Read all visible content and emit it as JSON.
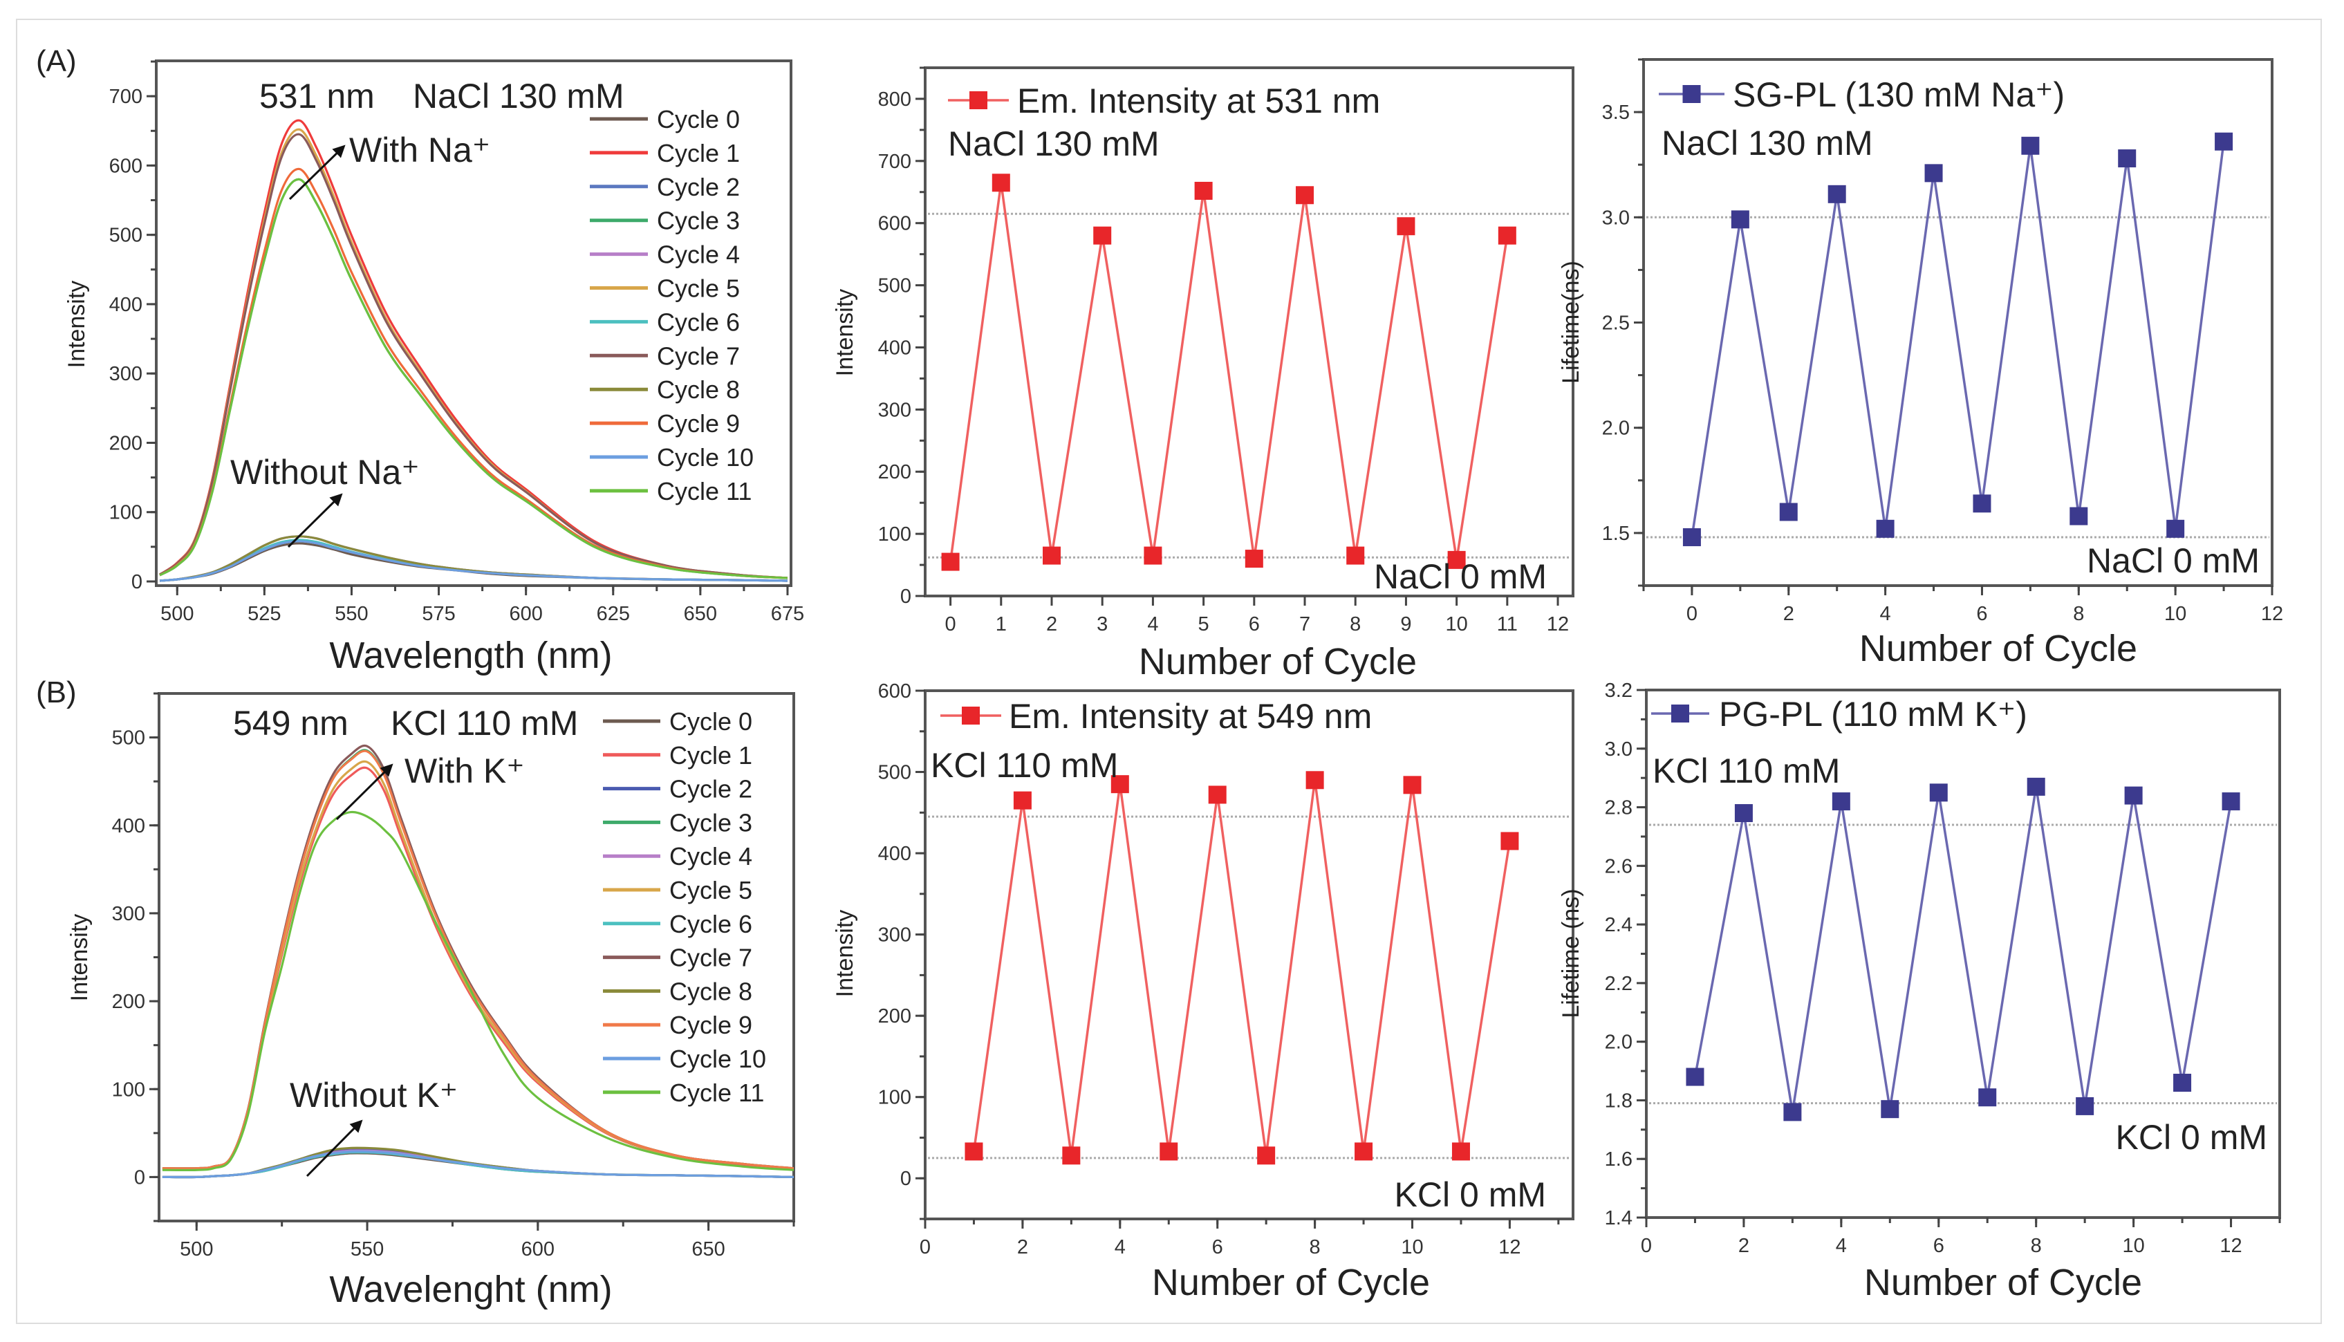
{
  "panel_labels": [
    "(A)",
    "(B)"
  ],
  "chart_data": [
    {
      "type": "line",
      "panel": "A",
      "xlabel": "Wavelength (nm)",
      "ylabel": "Intensity",
      "xlim": [
        494,
        676
      ],
      "ylim": [
        -6,
        751
      ],
      "xticks": [
        500,
        525,
        550,
        575,
        600,
        625,
        650,
        675
      ],
      "yticks": [
        0,
        100,
        200,
        300,
        400,
        500,
        600,
        700
      ],
      "grid": false,
      "legend_position": "right",
      "annotations": {
        "peak": "531 nm",
        "condition": "NaCl 130 mM",
        "with": "With Na⁺",
        "without": "Without Na⁺"
      },
      "x": [
        495,
        500,
        505,
        510,
        515,
        520,
        525,
        530,
        535,
        540,
        545,
        550,
        560,
        570,
        580,
        590,
        600,
        620,
        640,
        660,
        675
      ],
      "series": [
        {
          "name": "Cycle 0",
          "color": "#6d5a50",
          "values": [
            1,
            3,
            6,
            11,
            20,
            32,
            44,
            52,
            55,
            52,
            46,
            39,
            29,
            21,
            16,
            11,
            8,
            5,
            3,
            2,
            1
          ]
        },
        {
          "name": "Cycle 1",
          "color": "#ef3b3b",
          "values": [
            10,
            27,
            60,
            146,
            279,
            412,
            532,
            632,
            665,
            625,
            565,
            499,
            386,
            306,
            233,
            173,
            133,
            57,
            23,
            10,
            5
          ]
        },
        {
          "name": "Cycle 2",
          "color": "#5b78c0",
          "values": [
            1,
            3,
            7,
            13,
            24,
            38,
            52,
            62,
            65,
            62,
            54,
            47,
            35,
            25,
            18,
            13,
            10,
            5,
            3,
            2,
            1
          ]
        },
        {
          "name": "Cycle 3",
          "color": "#3daa6a",
          "values": [
            9,
            23,
            52,
            128,
            244,
            360,
            464,
            551,
            580,
            545,
            493,
            435,
            336,
            267,
            203,
            151,
            116,
            49,
            20,
            9,
            5
          ]
        },
        {
          "name": "Cycle 4",
          "color": "#b77fc8",
          "values": [
            1,
            3,
            7,
            13,
            24,
            38,
            52,
            62,
            65,
            62,
            54,
            47,
            35,
            25,
            18,
            13,
            10,
            5,
            3,
            2,
            1
          ]
        },
        {
          "name": "Cycle 5",
          "color": "#d8a64a",
          "values": [
            10,
            26,
            59,
            143,
            274,
            404,
            522,
            619,
            652,
            613,
            554,
            489,
            378,
            300,
            228,
            170,
            130,
            55,
            23,
            10,
            5
          ]
        },
        {
          "name": "Cycle 6",
          "color": "#4cc0c0",
          "values": [
            1,
            3,
            6,
            12,
            22,
            35,
            48,
            57,
            60,
            57,
            50,
            43,
            32,
            23,
            17,
            12,
            9,
            5,
            3,
            2,
            1
          ]
        },
        {
          "name": "Cycle 7",
          "color": "#8a5a5a",
          "values": [
            10,
            26,
            58,
            142,
            271,
            400,
            516,
            613,
            645,
            606,
            548,
            484,
            374,
            297,
            226,
            168,
            129,
            55,
            23,
            10,
            5
          ]
        },
        {
          "name": "Cycle 8",
          "color": "#8a8a3a",
          "values": [
            1,
            3,
            7,
            13,
            24,
            38,
            52,
            62,
            65,
            62,
            54,
            47,
            35,
            25,
            18,
            13,
            10,
            5,
            3,
            2,
            1
          ]
        },
        {
          "name": "Cycle 9",
          "color": "#ef6a3a",
          "values": [
            9,
            24,
            54,
            131,
            250,
            369,
            476,
            565,
            595,
            559,
            506,
            446,
            345,
            274,
            208,
            155,
            119,
            51,
            21,
            9,
            5
          ]
        },
        {
          "name": "Cycle 10",
          "color": "#6c9ee0",
          "values": [
            1,
            3,
            6,
            12,
            21,
            34,
            46,
            55,
            58,
            55,
            48,
            42,
            31,
            22,
            16,
            12,
            9,
            5,
            3,
            2,
            1
          ]
        },
        {
          "name": "Cycle 11",
          "color": "#6cc040",
          "values": [
            9,
            23,
            52,
            128,
            244,
            360,
            464,
            551,
            580,
            545,
            493,
            435,
            336,
            267,
            203,
            151,
            116,
            49,
            20,
            9,
            5
          ]
        }
      ]
    },
    {
      "type": "line",
      "panel": "A",
      "xlabel": "Number of Cycle",
      "ylabel": "Intensity",
      "xlim": [
        -0.5,
        12.3
      ],
      "ylim": [
        0,
        850
      ],
      "xticks": [
        0,
        1,
        2,
        3,
        4,
        5,
        6,
        7,
        8,
        9,
        10,
        11,
        12
      ],
      "yticks": [
        0,
        100,
        200,
        300,
        400,
        500,
        600,
        700,
        800
      ],
      "grid": false,
      "legend_position": "top-left",
      "reference_lines": [
        615,
        62
      ],
      "annotations": {
        "high": "NaCl 130 mM",
        "low": "NaCl 0 mM"
      },
      "x": [
        0,
        1,
        2,
        3,
        4,
        5,
        6,
        7,
        8,
        9,
        10,
        11
      ],
      "series": [
        {
          "name": "Em. Intensity at 531 nm",
          "color": "#e8262a",
          "values": [
            55,
            665,
            65,
            580,
            65,
            652,
            60,
            645,
            65,
            595,
            58,
            580
          ]
        }
      ]
    },
    {
      "type": "line",
      "panel": "A",
      "xlabel": "Number of Cycle",
      "ylabel": "Lifetime(ns)",
      "xlim": [
        -1,
        12
      ],
      "ylim": [
        1.25,
        3.75
      ],
      "xticks": [
        0,
        2,
        4,
        6,
        8,
        10,
        12
      ],
      "yticks": [
        1.5,
        2.0,
        2.5,
        3.0,
        3.5
      ],
      "grid": false,
      "legend_position": "top-left",
      "reference_lines": [
        3.0,
        1.48
      ],
      "annotations": {
        "high": "NaCl 130 mM",
        "low": "NaCl 0 mM"
      },
      "x": [
        0,
        1,
        2,
        3,
        4,
        5,
        6,
        7,
        8,
        9,
        10,
        11
      ],
      "series": [
        {
          "name": "SG-PL (130 mM Na⁺)",
          "color": "#3c3a8e",
          "values": [
            1.48,
            2.99,
            1.6,
            3.11,
            1.52,
            3.21,
            1.64,
            3.34,
            1.58,
            3.28,
            1.52,
            3.36
          ]
        }
      ]
    },
    {
      "type": "line",
      "panel": "B",
      "xlabel": "Wavelenght (nm)",
      "ylabel": "Intensity",
      "xlim": [
        489,
        675
      ],
      "ylim": [
        -50,
        550
      ],
      "xticks": [
        500,
        550,
        600,
        650
      ],
      "yticks": [
        0,
        100,
        200,
        300,
        400,
        500
      ],
      "grid": false,
      "legend_position": "right",
      "annotations": {
        "peak": "549 nm",
        "condition": "KCl 110 mM",
        "with": "With K⁺",
        "without": "Without K⁺"
      },
      "x": [
        490,
        500,
        505,
        510,
        515,
        520,
        525,
        530,
        535,
        540,
        545,
        550,
        555,
        560,
        570,
        580,
        590,
        600,
        620,
        640,
        660,
        675
      ],
      "series": [
        {
          "name": "Cycle 0",
          "color": "#6d5a50",
          "values": [
            0,
            0,
            1,
            2,
            4,
            7,
            12,
            17,
            22,
            25,
            27,
            27,
            26,
            24,
            19,
            14,
            9,
            6,
            3,
            2,
            1,
            0
          ]
        },
        {
          "name": "Cycle 1",
          "color": "#ef5a5a",
          "values": [
            9,
            9,
            12,
            21,
            72,
            167,
            253,
            330,
            391,
            435,
            456,
            465,
            439,
            386,
            286,
            209,
            153,
            107,
            50,
            24,
            14,
            9
          ]
        },
        {
          "name": "Cycle 2",
          "color": "#4a5ab0",
          "values": [
            0,
            0,
            1,
            2,
            4,
            9,
            14,
            20,
            26,
            30,
            32,
            32,
            31,
            29,
            22,
            16,
            11,
            7,
            3,
            2,
            1,
            0
          ]
        },
        {
          "name": "Cycle 3",
          "color": "#3daa6a",
          "values": [
            10,
            10,
            12,
            22,
            75,
            175,
            264,
            344,
            407,
            453,
            475,
            485,
            458,
            403,
            298,
            218,
            160,
            112,
            52,
            25,
            15,
            10
          ]
        },
        {
          "name": "Cycle 4",
          "color": "#b77fc8",
          "values": [
            0,
            0,
            1,
            2,
            4,
            8,
            13,
            19,
            24,
            28,
            30,
            30,
            29,
            27,
            21,
            15,
            10,
            7,
            3,
            2,
            1,
            0
          ]
        },
        {
          "name": "Cycle 5",
          "color": "#d8a64a",
          "values": [
            9,
            9,
            12,
            21,
            73,
            170,
            257,
            335,
            396,
            441,
            463,
            472,
            446,
            392,
            290,
            212,
            156,
            109,
            51,
            24,
            15,
            9
          ]
        },
        {
          "name": "Cycle 6",
          "color": "#4cc0c0",
          "values": [
            0,
            0,
            1,
            2,
            4,
            7,
            12,
            18,
            23,
            26,
            28,
            28,
            27,
            25,
            20,
            14,
            9,
            6,
            3,
            2,
            1,
            0
          ]
        },
        {
          "name": "Cycle 7",
          "color": "#8a5a5a",
          "values": [
            10,
            10,
            12,
            22,
            76,
            176,
            267,
            348,
            412,
            458,
            480,
            490,
            463,
            407,
            301,
            221,
            162,
            113,
            52,
            25,
            15,
            10
          ]
        },
        {
          "name": "Cycle 8",
          "color": "#8a8a3a",
          "values": [
            0,
            0,
            1,
            2,
            4,
            9,
            14,
            20,
            26,
            31,
            33,
            33,
            32,
            30,
            23,
            16,
            11,
            7,
            3,
            2,
            1,
            0
          ]
        },
        {
          "name": "Cycle 9",
          "color": "#f07a4a",
          "values": [
            10,
            10,
            12,
            22,
            75,
            174,
            264,
            344,
            407,
            453,
            474,
            484,
            457,
            402,
            298,
            218,
            160,
            111,
            52,
            25,
            15,
            10
          ]
        },
        {
          "name": "Cycle 10",
          "color": "#6c9ee0",
          "values": [
            0,
            0,
            1,
            2,
            4,
            8,
            13,
            19,
            24,
            27,
            29,
            29,
            28,
            26,
            20,
            15,
            10,
            7,
            3,
            2,
            1,
            0
          ]
        },
        {
          "name": "Cycle 11",
          "color": "#6cc040",
          "values": [
            8,
            8,
            10,
            20,
            70,
            165,
            240,
            320,
            380,
            405,
            415,
            410,
            395,
            370,
            290,
            215,
            140,
            90,
            45,
            22,
            12,
            8
          ]
        }
      ]
    },
    {
      "type": "line",
      "panel": "B",
      "xlabel": "Number of Cycle",
      "ylabel": "Intensity",
      "xlim": [
        0,
        13.3
      ],
      "ylim": [
        -50,
        600
      ],
      "xticks": [
        0,
        2,
        4,
        6,
        8,
        10,
        12
      ],
      "yticks": [
        0,
        100,
        200,
        300,
        400,
        500,
        600
      ],
      "grid": false,
      "legend_position": "top-left",
      "reference_lines": [
        445,
        25
      ],
      "annotations": {
        "high": "KCl 110 mM",
        "low": "KCl 0 mM"
      },
      "x": [
        1,
        2,
        3,
        4,
        5,
        6,
        7,
        8,
        9,
        10,
        11,
        12
      ],
      "series": [
        {
          "name": "Em. Intensity at 549 nm",
          "color": "#e8262a",
          "values": [
            33,
            465,
            28,
            485,
            33,
            472,
            28,
            490,
            33,
            484,
            33,
            415
          ]
        }
      ]
    },
    {
      "type": "line",
      "panel": "B",
      "xlabel": "Number of Cycle",
      "ylabel": "Lifetime (ns)",
      "xlim": [
        0,
        13
      ],
      "ylim": [
        1.4,
        3.2
      ],
      "xticks": [
        0,
        2,
        4,
        6,
        8,
        10,
        12
      ],
      "yticks": [
        1.4,
        1.6,
        1.8,
        2.0,
        2.2,
        2.4,
        2.6,
        2.8,
        3.0,
        3.2
      ],
      "grid": false,
      "legend_position": "top-left",
      "reference_lines": [
        2.74,
        1.79
      ],
      "annotations": {
        "high": "KCl 110 mM",
        "low": "KCl 0 mM"
      },
      "x": [
        1,
        2,
        3,
        4,
        5,
        6,
        7,
        8,
        9,
        10,
        11,
        12
      ],
      "series": [
        {
          "name": "PG-PL (110 mM K⁺)",
          "color": "#3c3a8e",
          "values": [
            1.88,
            2.78,
            1.76,
            2.82,
            1.77,
            2.85,
            1.81,
            2.87,
            1.78,
            2.84,
            1.86,
            2.82
          ]
        }
      ]
    }
  ]
}
